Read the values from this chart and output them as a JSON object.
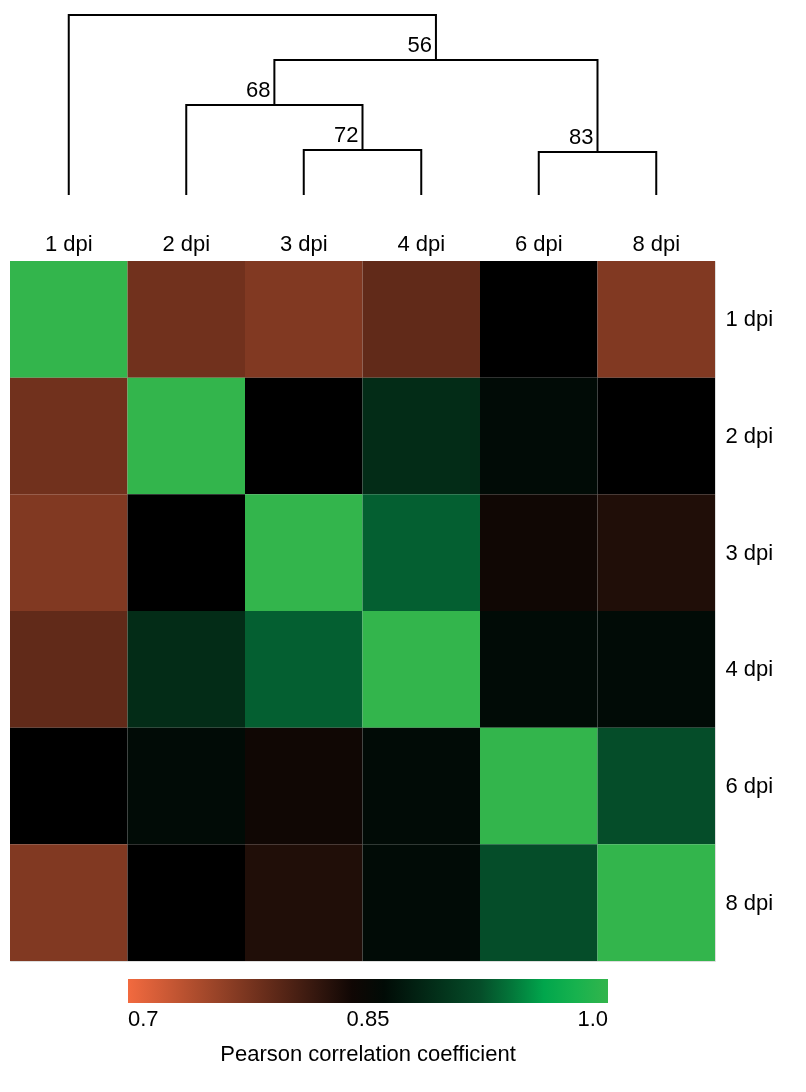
{
  "chart_data": {
    "type": "heatmap",
    "clabel": "Pearson correlation coefficient",
    "categories": [
      "1 dpi",
      "2 dpi",
      "3 dpi",
      "4 dpi",
      "6 dpi",
      "8 dpi"
    ],
    "y_categories": [
      "1 dpi",
      "2 dpi",
      "3 dpi",
      "4 dpi",
      "6 dpi",
      "8 dpi"
    ],
    "cells": [
      [
        1.0,
        0.78,
        0.77,
        0.79,
        0.85,
        0.77
      ],
      [
        0.78,
        1.0,
        0.85,
        0.89,
        0.86,
        0.85
      ],
      [
        0.77,
        0.85,
        1.0,
        0.93,
        0.84,
        0.83
      ],
      [
        0.79,
        0.89,
        0.93,
        1.0,
        0.86,
        0.86
      ],
      [
        0.85,
        0.86,
        0.84,
        0.86,
        1.0,
        0.92
      ],
      [
        0.77,
        0.85,
        0.83,
        0.86,
        0.92,
        1.0
      ]
    ],
    "clim": [
      0.7,
      1.0
    ],
    "cticks": [
      0.7,
      0.85,
      {
        "value": 1.0,
        "label": "1.0"
      }
    ],
    "annotations": [
      "56",
      "68",
      "72",
      "83"
    ]
  }
}
